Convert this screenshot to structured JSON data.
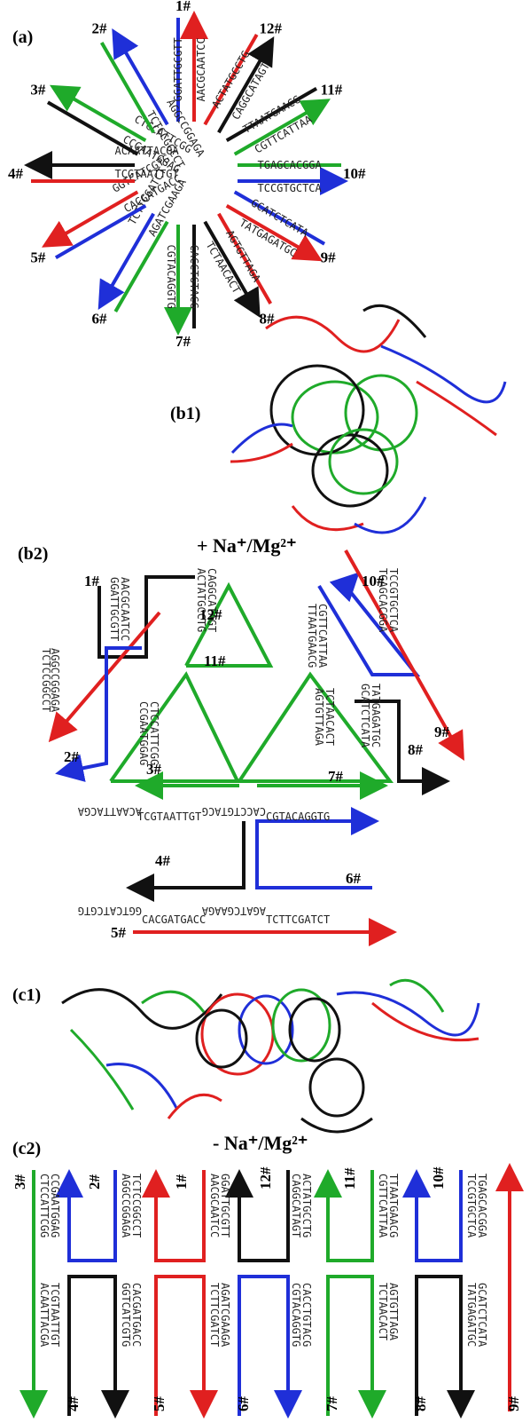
{
  "colors": {
    "red": "#e02020",
    "blue": "#1f2fd8",
    "black": "#111111",
    "green": "#1faa2a"
  },
  "panels": {
    "a": "(a)",
    "b1": "(b1)",
    "b2": "(b2)",
    "c1": "(c1)",
    "c2": "(c2)"
  },
  "conditions": {
    "plus": "+ Na⁺/Mg²⁺",
    "minus": "- Na⁺/Mg²⁺"
  },
  "strands": {
    "s1": "1#",
    "s2": "2#",
    "s3": "3#",
    "s4": "4#",
    "s5": "5#",
    "s6": "6#",
    "s7": "7#",
    "s8": "8#",
    "s9": "9#",
    "s10": "10#",
    "s11": "11#",
    "s12": "12#"
  },
  "sequences": {
    "q1a": "AACGCAATCC",
    "q1b": "GGATTGCGTT",
    "q2a": "AGGCCGGAGA",
    "q2b": "TCTCCGGCCT",
    "q3a": "CTCCATTCGG",
    "q3b": "CCGAATGGAG",
    "q4a": "ACAATTACGA",
    "q4b": "TCGTAATTGT",
    "q5a": "GGTCATCGTG",
    "q5b": "CACGATGACC",
    "q6a": "TCTTCGATCT",
    "q6b": "AGATCGAAGA",
    "q7a": "CGTACAGGTG",
    "q7b": "CACCTGTACG",
    "q8a": "TCTAACACT",
    "q8b": "AGTGTTAGA",
    "q9a": "TATGAGATGC",
    "q9b": "GCATCTCATA",
    "q10a": "TCCGTGCTCA",
    "q10b": "TGAGCACGGA",
    "q11a": "CGTTCATTAA",
    "q11b": "TTAATGAACG",
    "q12a": "CAGGCATAGT",
    "q12b": "ACTATGCCTG"
  }
}
